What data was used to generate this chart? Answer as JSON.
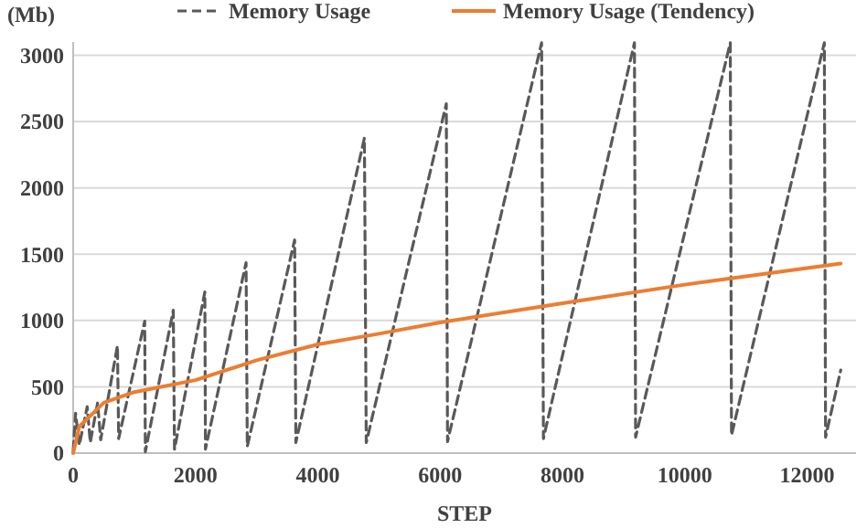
{
  "chart_data": {
    "type": "line",
    "xlabel": "STEP",
    "ylabel": "(Mb)",
    "xlim": [
      0,
      12800
    ],
    "ylim": [
      0,
      3100
    ],
    "xticks": [
      0,
      2000,
      4000,
      6000,
      8000,
      10000,
      12000
    ],
    "yticks": [
      0,
      500,
      1000,
      1500,
      2000,
      2500,
      3000
    ],
    "grid": "y",
    "legend": "top",
    "marker": "none",
    "series": [
      {
        "name": "Memory Usage",
        "color": "#595959",
        "line_style": "dashed",
        "x": [
          0,
          40,
          100,
          230,
          280,
          400,
          450,
          724,
          744,
          1170,
          1180,
          1637,
          1657,
          2153,
          2163,
          2827,
          2847,
          3621,
          3641,
          4762,
          4792,
          6101,
          6121,
          7659,
          7689,
          9177,
          9196,
          10744,
          10764,
          12282,
          12302,
          12550
        ],
        "values": [
          20,
          300,
          60,
          350,
          80,
          380,
          100,
          810,
          110,
          995,
          10,
          1077,
          30,
          1215,
          30,
          1436,
          50,
          1607,
          80,
          2376,
          80,
          2634,
          87,
          3094,
          110,
          3094,
          120,
          3094,
          135,
          3094,
          120,
          626
        ]
      },
      {
        "name": "Memory Usage (Tendency)",
        "color": "#ed7d31",
        "line_style": "solid",
        "x": [
          0,
          100,
          500,
          1000,
          2000,
          3000,
          4000,
          5000,
          6000,
          8000,
          10000,
          12550
        ],
        "values": [
          0,
          200,
          380,
          460,
          550,
          700,
          820,
          900,
          985,
          1130,
          1270,
          1430
        ]
      }
    ]
  }
}
